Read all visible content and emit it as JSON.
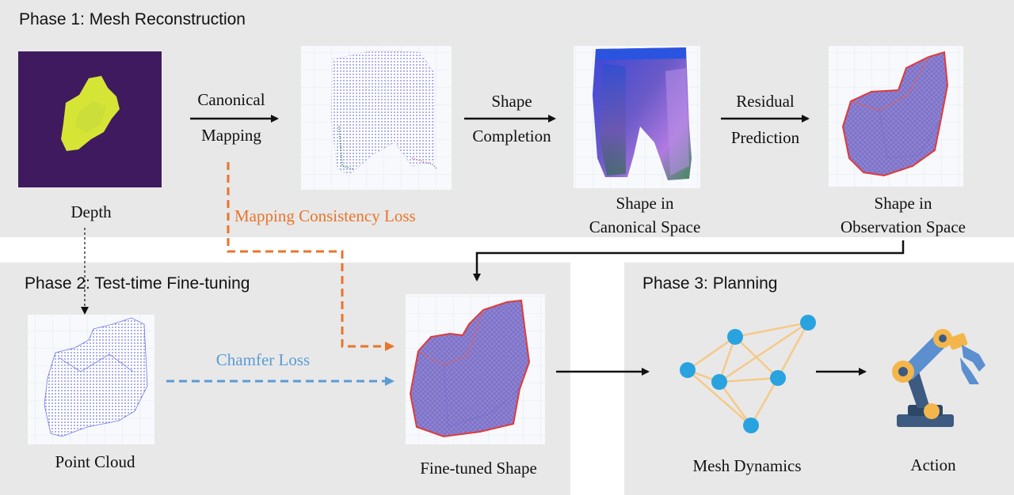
{
  "phase1": {
    "title": "Phase 1: Mesh Reconstruction"
  },
  "phase2": {
    "title": "Phase 2: Test-time Fine-tuning"
  },
  "phase3": {
    "title": "Phase 3: Planning"
  },
  "labels": {
    "depth": "Depth",
    "canonical_mapping_1": "Canonical",
    "canonical_mapping_2": "Mapping",
    "shape_completion_1": "Shape",
    "shape_completion_2": "Completion",
    "canonical_shape_1": "Shape in",
    "canonical_shape_2": "Canonical Space",
    "residual_1": "Residual",
    "residual_2": "Prediction",
    "observation_shape_1": "Shape in",
    "observation_shape_2": "Observation Space",
    "mapping_loss": "Mapping Consistency Loss",
    "chamfer_loss": "Chamfer Loss",
    "point_cloud": "Point Cloud",
    "finetuned_shape": "Fine-tuned Shape",
    "mesh_dynamics": "Mesh Dynamics",
    "action": "Action"
  },
  "colors": {
    "panel": "#e8e8e8",
    "orange": "#e8752a",
    "blue": "#5b9bd5",
    "graph_node": "#29a3e0",
    "graph_edge": "#f6c98a"
  },
  "icons": [
    "depth-map-icon",
    "canonical-pointcloud-icon",
    "canonical-shape-icon",
    "observation-shape-icon",
    "point-cloud-icon",
    "finetuned-shape-icon",
    "mesh-graph-icon",
    "robot-arm-icon"
  ]
}
